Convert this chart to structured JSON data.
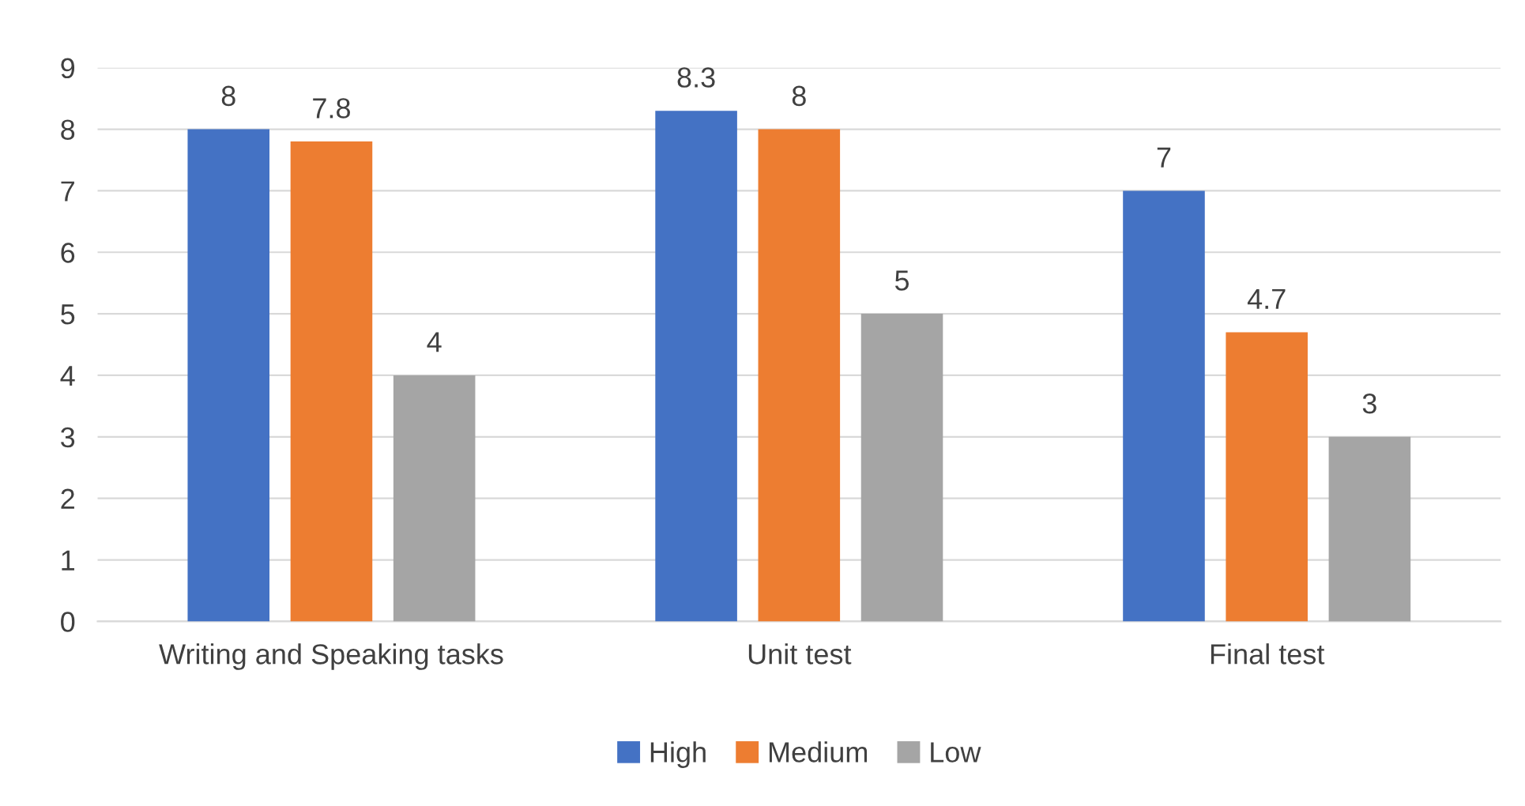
{
  "chart_data": {
    "type": "bar",
    "categories": [
      "Writing and Speaking tasks",
      "Unit test",
      "Final test"
    ],
    "series": [
      {
        "name": "High",
        "color": "#4472c4",
        "values": [
          8,
          8.3,
          7
        ]
      },
      {
        "name": "Medium",
        "color": "#ed7d31",
        "values": [
          7.8,
          8,
          4.7
        ]
      },
      {
        "name": "Low",
        "color": "#a5a5a5",
        "values": [
          4,
          5,
          3
        ]
      }
    ],
    "ylim": [
      0,
      9
    ],
    "yticks": [
      0,
      1,
      2,
      3,
      4,
      5,
      6,
      7,
      8,
      9
    ],
    "grid": "y",
    "legend": "bottom",
    "data_labels": true
  }
}
